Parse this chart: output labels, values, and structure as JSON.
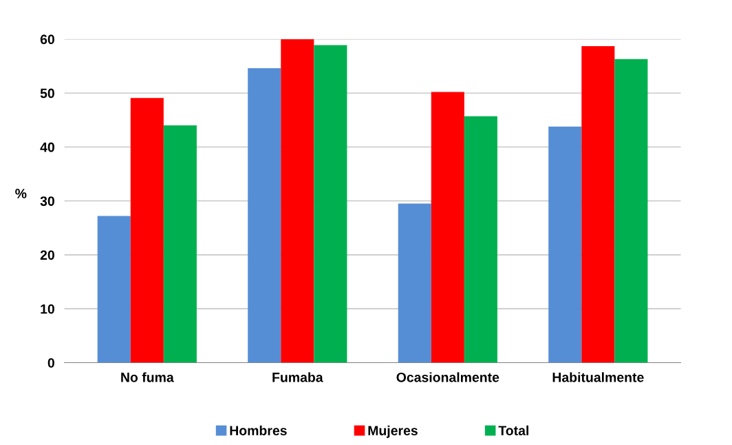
{
  "chart_data": {
    "type": "bar",
    "ylabel": "%",
    "categories": [
      "No fuma",
      "Fumaba",
      "Ocasionalmente",
      "Habitualmente"
    ],
    "series": [
      {
        "name": "Hombres",
        "color": "#558ed5",
        "values": [
          27.2,
          54.6,
          29.5,
          43.8
        ]
      },
      {
        "name": "Mujeres",
        "color": "#ff0000",
        "values": [
          49.1,
          60,
          50.2,
          58.7
        ]
      },
      {
        "name": "Total",
        "color": "#00b050",
        "values": [
          44.0,
          58.9,
          45.7,
          56.3
        ]
      }
    ],
    "ylim": [
      0,
      60
    ],
    "yticks": [
      0,
      10,
      20,
      30,
      40,
      50,
      60
    ],
    "grid": "y",
    "legend": "bottom"
  }
}
